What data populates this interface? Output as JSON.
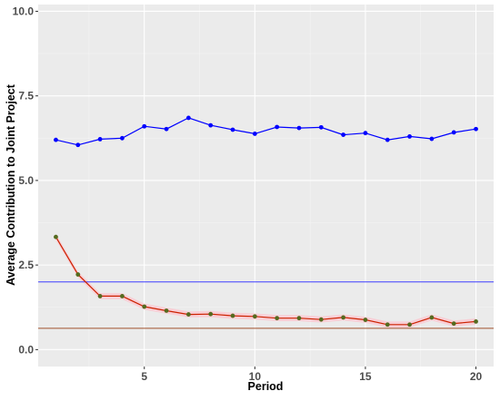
{
  "chart_data": {
    "type": "line",
    "title": "",
    "xlabel": "Period",
    "ylabel": "Average Contribution to Joint Project",
    "xlim": [
      0.2,
      20.8
    ],
    "ylim": [
      -0.5,
      10.2
    ],
    "x_ticks": [
      5,
      10,
      15,
      20
    ],
    "x_tick_labels": [
      "5",
      "10",
      "15",
      "20"
    ],
    "y_ticks": [
      0,
      2.5,
      5,
      7.5,
      10
    ],
    "y_tick_labels": [
      "0.0",
      "2.5",
      "5.0",
      "7.5",
      "10.0"
    ],
    "grid": true,
    "legend": "none",
    "x": [
      1,
      2,
      3,
      4,
      5,
      6,
      7,
      8,
      9,
      10,
      11,
      12,
      13,
      14,
      15,
      16,
      17,
      18,
      19,
      20
    ],
    "series": [
      {
        "color": "#0000ff",
        "marker_color": "#0000ff",
        "values": [
          6.2,
          6.05,
          6.22,
          6.25,
          6.6,
          6.52,
          6.85,
          6.63,
          6.5,
          6.38,
          6.58,
          6.55,
          6.57,
          6.35,
          6.4,
          6.2,
          6.3,
          6.23,
          6.42,
          6.52
        ]
      },
      {
        "color": "#cc2200",
        "marker_color": "#556b1f",
        "band_color": "#ffc0cb",
        "values": [
          3.33,
          2.22,
          1.58,
          1.58,
          1.27,
          1.15,
          1.04,
          1.05,
          1.0,
          0.98,
          0.93,
          0.93,
          0.89,
          0.95,
          0.88,
          0.74,
          0.74,
          0.95,
          0.77,
          0.83
        ]
      }
    ],
    "reference_lines": [
      {
        "y": 2.0,
        "color": "#4040ff"
      },
      {
        "y": 0.63,
        "color": "#a0522d"
      }
    ]
  }
}
